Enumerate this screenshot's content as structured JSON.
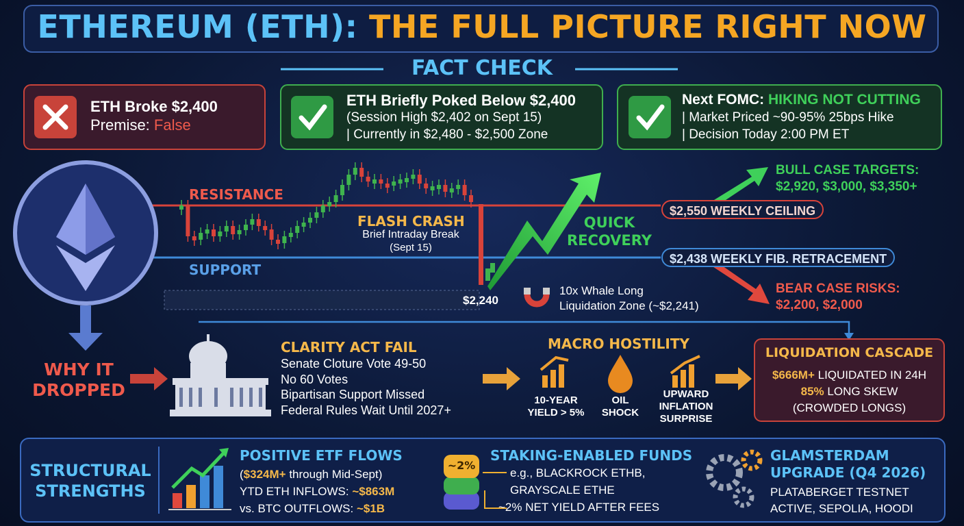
{
  "title": {
    "lead": "ETHEREUM (ETH):",
    "rest": "THE FULL PICTURE RIGHT NOW"
  },
  "fact_check": {
    "heading": "FACT CHECK",
    "premise": {
      "title": "ETH Broke $2,400",
      "label": "Premise:",
      "verdict": "False"
    },
    "session": {
      "title": "ETH Briefly Poked Below $2,400",
      "lines": [
        "(Session High $2,402 on Sept 15)",
        "| Currently in $2,480 - $2,500 Zone"
      ]
    },
    "fomc": {
      "title": "Next FOMC:",
      "highlight": "HIKING NOT CUTTING",
      "lines": [
        "| Market Priced ~90-95% 25bps Hike",
        "| Decision Today 2:00 PM ET"
      ]
    }
  },
  "price_action": {
    "resistance": "RESISTANCE",
    "support": "SUPPORT",
    "flash_crash": {
      "title": "FLASH CRASH",
      "lines": [
        "Brief Intraday Break",
        "(Sept 15)"
      ]
    },
    "low": "$2,240",
    "recovery": [
      "QUICK",
      "RECOVERY"
    ],
    "ceiling": "$2,550 WEEKLY CEILING",
    "fib": "$2,438 WEEKLY FIB. RETRACEMENT",
    "bull": {
      "title": "BULL CASE TARGETS:",
      "targets": "$2,920, $3,000, $3,350+"
    },
    "bear": {
      "title": "BEAR CASE RISKS:",
      "targets": "$2,200, $2,000"
    },
    "whale": [
      "10x Whale Long",
      "Liquidation Zone (~$2,241)"
    ]
  },
  "why_it_dropped": {
    "heading": [
      "WHY IT",
      "DROPPED"
    ],
    "clarity": {
      "title": "CLARITY ACT FAIL",
      "lines": [
        "Senate Cloture Vote 49-50",
        "No 60 Votes",
        "Bipartisan Support Missed",
        "Federal Rules Wait Until 2027+"
      ]
    },
    "macro": {
      "title": "MACRO HOSTILITY",
      "items": [
        [
          "10-YEAR",
          "YIELD > 5%"
        ],
        [
          "OIL",
          "SHOCK"
        ],
        [
          "UPWARD",
          "INFLATION",
          "SURPRISE"
        ]
      ]
    },
    "cascade": {
      "title": "LIQUIDATION CASCADE",
      "lines": [
        [
          "$666M+",
          " LIQUIDATED IN 24H"
        ],
        [
          "85%",
          " LONG SKEW"
        ],
        [
          "(CROWDED LONGS)"
        ]
      ]
    }
  },
  "structural_strengths": {
    "heading": [
      "STRUCTURAL",
      "STRENGTHS"
    ],
    "etf": {
      "title": "POSITIVE ETF FLOWS",
      "lines": [
        [
          "(",
          "$324M+",
          " through Mid-Sept)"
        ],
        [
          "YTD ETH INFLOWS: ",
          "~$863M"
        ],
        [
          "vs. BTC OUTFLOWS: ",
          "~$1B"
        ]
      ]
    },
    "staking": {
      "title": "STAKING-ENABLED FUNDS",
      "badge": "~2%",
      "lines": [
        "e.g., BLACKROCK ETHB,",
        "GRAYSCALE ETHE",
        "~2% NET YIELD AFTER FEES"
      ]
    },
    "upgrade": {
      "title": [
        "GLAMSTERDAM",
        "UPGRADE (Q4 2026)"
      ],
      "lines": [
        "PLATABERGET TESTNET",
        "ACTIVE, SEPOLIA, HOODI"
      ]
    }
  }
}
